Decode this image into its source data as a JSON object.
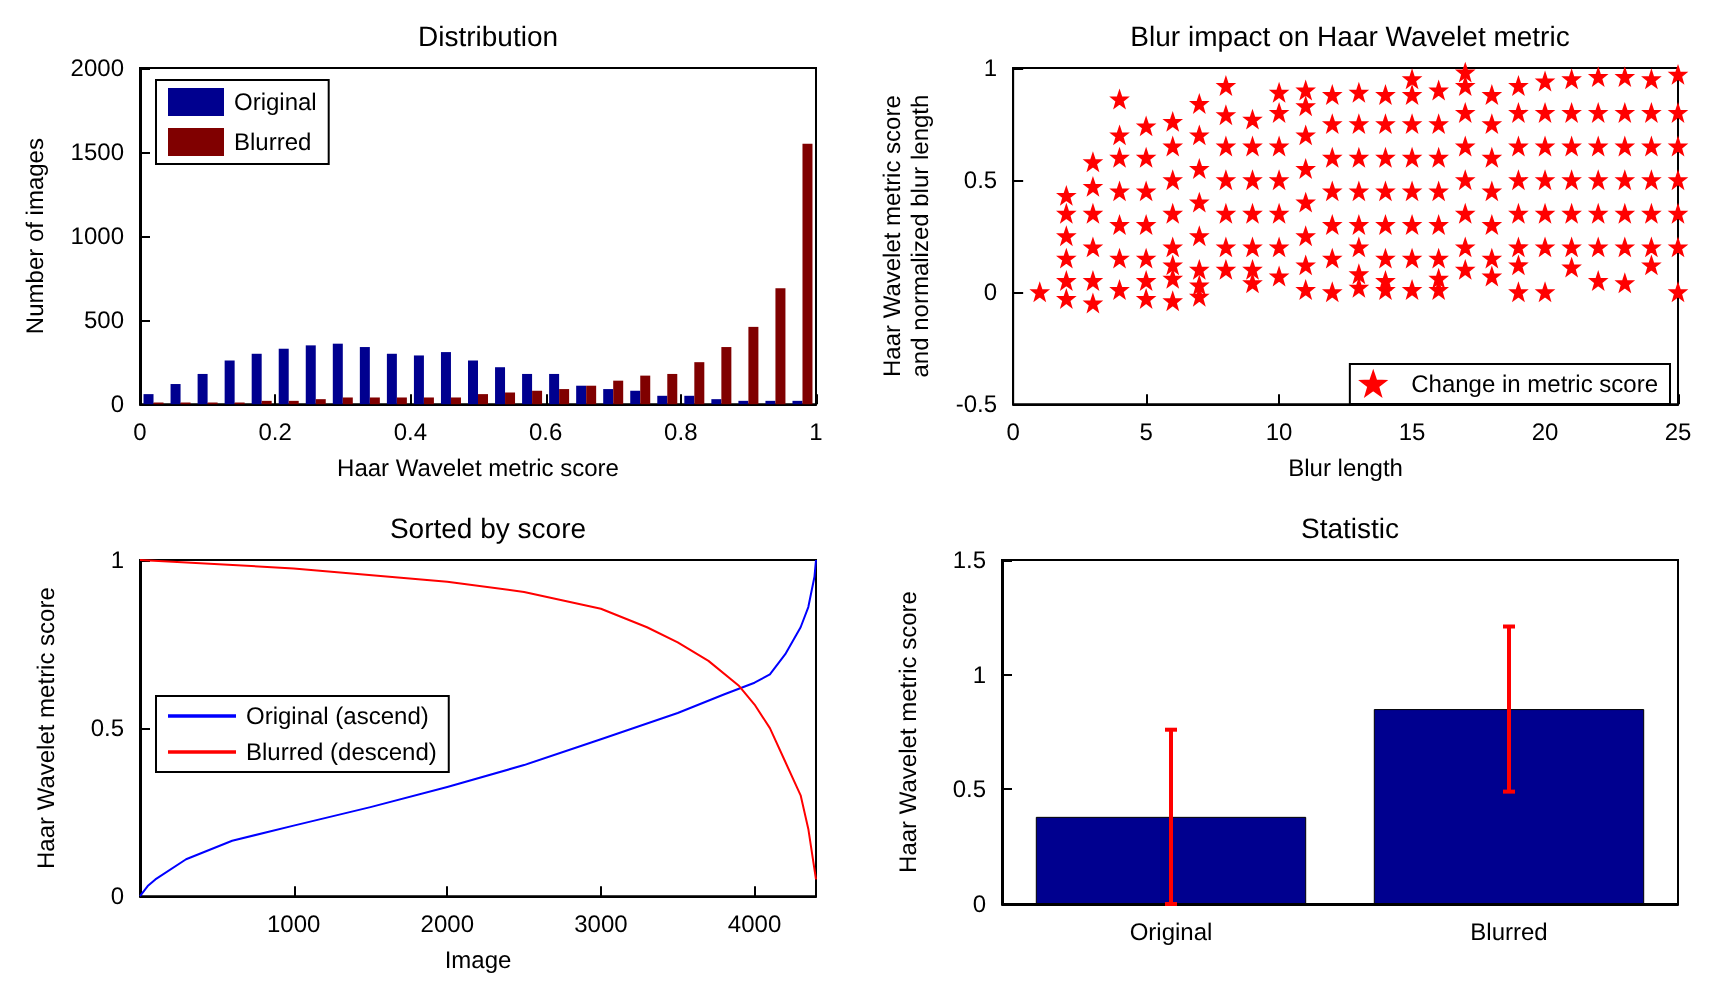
{
  "chart_data": [
    {
      "type": "bar",
      "title": "Distribution",
      "xlabel": "Haar Wavelet metric score",
      "ylabel": "Number of images",
      "x": [
        0.02,
        0.06,
        0.1,
        0.14,
        0.18,
        0.22,
        0.26,
        0.3,
        0.34,
        0.38,
        0.42,
        0.46,
        0.5,
        0.54,
        0.58,
        0.62,
        0.66,
        0.7,
        0.74,
        0.78,
        0.82,
        0.86,
        0.9,
        0.94,
        0.98
      ],
      "series": [
        {
          "name": "Original",
          "color": "#00008f",
          "values": [
            60,
            120,
            180,
            260,
            300,
            330,
            350,
            360,
            340,
            300,
            290,
            310,
            260,
            220,
            180,
            180,
            110,
            90,
            80,
            50,
            50,
            30,
            20,
            20,
            20
          ]
        },
        {
          "name": "Blurred",
          "color": "#800000",
          "values": [
            10,
            10,
            10,
            10,
            20,
            20,
            30,
            40,
            40,
            40,
            40,
            40,
            60,
            70,
            80,
            90,
            110,
            140,
            170,
            180,
            250,
            340,
            460,
            690,
            1550
          ]
        }
      ],
      "xlim": [
        0,
        1
      ],
      "xticks": [
        0,
        0.2,
        0.4,
        0.6,
        0.8,
        1
      ],
      "ylim": [
        0,
        2000
      ],
      "yticks": [
        0,
        500,
        1000,
        1500,
        2000
      ],
      "legend": "top left"
    },
    {
      "type": "scatter",
      "title": "Blur impact on Haar Wavelet metric",
      "xlabel": "Blur length",
      "ylabel": "Haar Wavelet metric score\nand normalized blur length",
      "series": [
        {
          "name": "Change in metric score",
          "color": "#ff0000",
          "x": [
            1,
            2,
            2,
            2,
            2,
            2,
            2,
            3,
            3,
            3,
            3,
            3,
            3,
            4,
            4,
            4,
            4,
            4,
            4,
            4,
            5,
            5,
            5,
            5,
            5,
            5,
            5,
            6,
            6,
            6,
            6,
            6,
            6,
            6,
            6,
            7,
            7,
            7,
            7,
            7,
            7,
            7,
            7,
            8,
            8,
            8,
            8,
            8,
            8,
            8,
            9,
            9,
            9,
            9,
            9,
            9,
            9,
            10,
            10,
            10,
            10,
            10,
            10,
            10,
            11,
            11,
            11,
            11,
            11,
            11,
            11,
            11,
            12,
            12,
            12,
            12,
            12,
            12,
            12,
            13,
            13,
            13,
            13,
            13,
            13,
            13,
            13,
            14,
            14,
            14,
            14,
            14,
            14,
            14,
            14,
            15,
            15,
            15,
            15,
            15,
            15,
            15,
            15,
            16,
            16,
            16,
            16,
            16,
            16,
            16,
            16,
            17,
            17,
            17,
            17,
            17,
            17,
            17,
            17,
            18,
            18,
            18,
            18,
            18,
            18,
            18,
            19,
            19,
            19,
            19,
            19,
            19,
            19,
            19,
            20,
            20,
            20,
            20,
            20,
            20,
            20,
            21,
            21,
            21,
            21,
            21,
            21,
            21,
            22,
            22,
            22,
            22,
            22,
            22,
            22,
            23,
            23,
            23,
            23,
            23,
            23,
            23,
            24,
            24,
            24,
            24,
            24,
            24,
            24,
            25,
            25,
            25,
            25,
            25,
            25,
            25
          ],
          "values": [
            0,
            0.43,
            0.35,
            0.25,
            0.15,
            0.05,
            -0.03,
            0.58,
            0.47,
            0.35,
            0.2,
            0.05,
            -0.05,
            0.86,
            0.7,
            0.6,
            0.45,
            0.3,
            0.15,
            0.01,
            0.74,
            0.6,
            0.45,
            0.3,
            0.15,
            0.05,
            -0.03,
            0.76,
            0.65,
            0.5,
            0.35,
            0.2,
            0.12,
            0.06,
            -0.04,
            0.84,
            0.7,
            0.55,
            0.4,
            0.25,
            0.1,
            0.03,
            -0.02,
            0.92,
            0.79,
            0.65,
            0.5,
            0.35,
            0.2,
            0.1,
            0.77,
            0.65,
            0.5,
            0.35,
            0.2,
            0.1,
            0.04,
            0.89,
            0.8,
            0.65,
            0.5,
            0.35,
            0.2,
            0.07,
            0.9,
            0.83,
            0.7,
            0.55,
            0.4,
            0.25,
            0.12,
            0.01,
            0.88,
            0.75,
            0.6,
            0.45,
            0.3,
            0.15,
            0.0,
            0.89,
            0.75,
            0.6,
            0.45,
            0.3,
            0.2,
            0.08,
            0.02,
            0.88,
            0.75,
            0.6,
            0.45,
            0.3,
            0.15,
            0.05,
            0.01,
            0.95,
            0.88,
            0.75,
            0.6,
            0.45,
            0.3,
            0.15,
            0.01,
            0.9,
            0.75,
            0.6,
            0.45,
            0.3,
            0.15,
            0.06,
            0.01,
            0.98,
            0.92,
            0.8,
            0.65,
            0.5,
            0.35,
            0.2,
            0.1,
            0.88,
            0.75,
            0.6,
            0.45,
            0.3,
            0.15,
            0.07,
            0.92,
            0.8,
            0.65,
            0.5,
            0.35,
            0.2,
            0.12,
            0.0,
            0.94,
            0.8,
            0.65,
            0.5,
            0.35,
            0.2,
            0.0,
            0.95,
            0.8,
            0.65,
            0.5,
            0.35,
            0.2,
            0.11,
            0.96,
            0.8,
            0.65,
            0.5,
            0.35,
            0.2,
            0.05,
            0.96,
            0.8,
            0.65,
            0.5,
            0.35,
            0.2,
            0.04,
            0.95,
            0.8,
            0.65,
            0.5,
            0.35,
            0.2,
            0.12,
            0.97,
            0.8,
            0.65,
            0.5,
            0.35,
            0.2,
            0.0
          ]
        }
      ],
      "xlim": [
        0,
        25
      ],
      "xticks": [
        0,
        5,
        10,
        15,
        20,
        25
      ],
      "ylim": [
        -0.5,
        1
      ],
      "yticks": [
        -0.5,
        0,
        0.5,
        1
      ],
      "legend": "bottom right",
      "marker": "star"
    },
    {
      "type": "line",
      "title": "Sorted by score",
      "xlabel": "Image",
      "ylabel": "Haar Wavelet metric score",
      "series": [
        {
          "name": "Original (ascend)",
          "color": "#0000ff",
          "x": [
            0,
            50,
            100,
            300,
            600,
            1000,
            1500,
            2000,
            2500,
            3000,
            3500,
            3800,
            4000,
            4100,
            4200,
            4300,
            4350,
            4390,
            4400
          ],
          "values": [
            0,
            0.03,
            0.05,
            0.11,
            0.165,
            0.21,
            0.265,
            0.325,
            0.39,
            0.467,
            0.545,
            0.6,
            0.635,
            0.66,
            0.72,
            0.8,
            0.86,
            0.95,
            1.0
          ]
        },
        {
          "name": "Blurred (descend)",
          "color": "#ff0000",
          "x": [
            0,
            1000,
            2000,
            2500,
            3000,
            3300,
            3500,
            3700,
            3900,
            4000,
            4100,
            4200,
            4300,
            4350,
            4400
          ],
          "values": [
            1.0,
            0.975,
            0.935,
            0.905,
            0.855,
            0.8,
            0.755,
            0.7,
            0.625,
            0.57,
            0.5,
            0.4,
            0.3,
            0.2,
            0.05
          ]
        }
      ],
      "xlim": [
        0,
        4400
      ],
      "xticks": [
        1000,
        2000,
        3000,
        4000
      ],
      "ylim": [
        0,
        1
      ],
      "yticks": [
        0,
        0.5,
        1
      ],
      "legend": "left"
    },
    {
      "type": "bar",
      "title": "Statistic",
      "ylabel": "Haar Wavelet metric score",
      "categories": [
        "Original",
        "Blurred"
      ],
      "series": [
        {
          "color": "#00008f",
          "values": [
            0.38,
            0.85
          ],
          "errors": [
            [
              0.0,
              0.76
            ],
            [
              0.49,
              1.21
            ]
          ]
        }
      ],
      "ylim": [
        0,
        1.5
      ],
      "yticks": [
        0,
        0.5,
        1,
        1.5
      ]
    }
  ]
}
